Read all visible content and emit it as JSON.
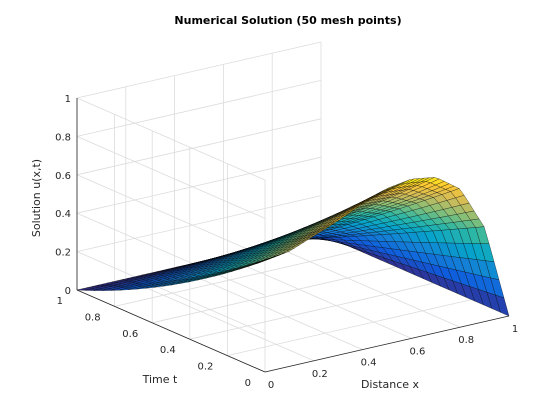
{
  "chart_data": {
    "type": "surface",
    "title": "Numerical Solution (50 mesh points)",
    "xlabel": "Distance x",
    "ylabel": "Time t",
    "zlabel": "Solution u(x,t)",
    "xlim": [
      0,
      1
    ],
    "ylim": [
      0,
      1
    ],
    "zlim": [
      0,
      1
    ],
    "x_ticks": [
      "0",
      "0.2",
      "0.4",
      "0.6",
      "0.8",
      "1"
    ],
    "y_ticks": [
      "0",
      "0.2",
      "0.4",
      "0.6",
      "0.8",
      "1"
    ],
    "z_ticks": [
      "0",
      "0.2",
      "0.4",
      "0.6",
      "0.8",
      "1"
    ],
    "grid": true,
    "colormap": "parula",
    "mesh_points": 50,
    "profile_at_t0": {
      "x": [
        0,
        0.1,
        0.2,
        0.3,
        0.4,
        0.5,
        0.6,
        0.7,
        0.8,
        0.9,
        1.0
      ],
      "u": [
        0.58,
        0.6,
        0.65,
        0.7,
        0.76,
        0.81,
        0.83,
        0.81,
        0.72,
        0.49,
        0
      ]
    },
    "edge_at_x0": {
      "t": [
        0,
        0.2,
        0.4,
        0.6,
        0.8,
        1.0
      ],
      "u": [
        0.58,
        0.52,
        0.4,
        0.26,
        0.12,
        0
      ]
    }
  },
  "colors": {
    "colormap_stops": [
      "#352a87",
      "#0f5cdd",
      "#1481d6",
      "#06a4ca",
      "#2eb7a4",
      "#87bf77",
      "#d1bb59",
      "#fec832",
      "#f9fb0e"
    ],
    "mesh_edge": "#000000",
    "grid": "#dcdcdc",
    "axis": "#262626"
  }
}
